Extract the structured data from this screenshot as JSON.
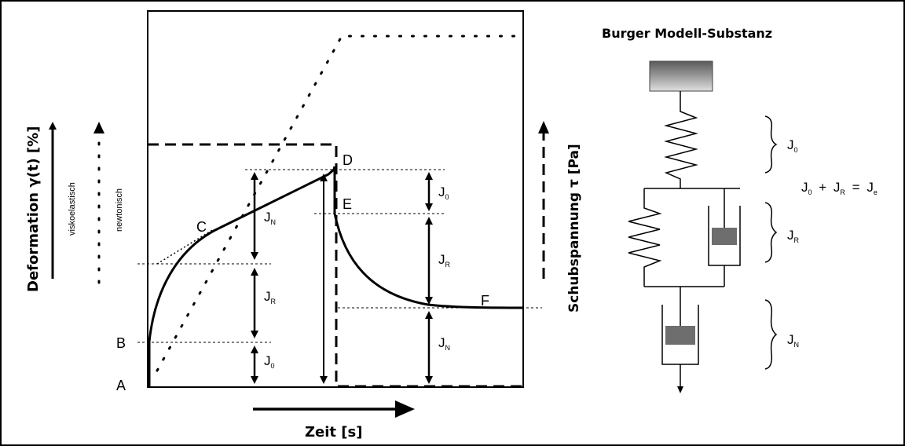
{
  "title": "Burger Modell-Substanz",
  "y_left_label": "Deformation γ(t) [%]",
  "y_right_label": "Schubspannung τ [Pa]",
  "x_label": "Zeit [s]",
  "viskoelastisch_label": "viskoelastisch",
  "newtonisch_label": "newtonisch",
  "points": {
    "A": "A",
    "B": "B",
    "C": "C",
    "D": "D",
    "E": "E",
    "F": "F"
  },
  "compliance": {
    "j": "J",
    "sub_0": "0",
    "sub_r": "R",
    "sub_n": "N",
    "sub_e": "e",
    "plus": "+",
    "equals": "="
  }
}
